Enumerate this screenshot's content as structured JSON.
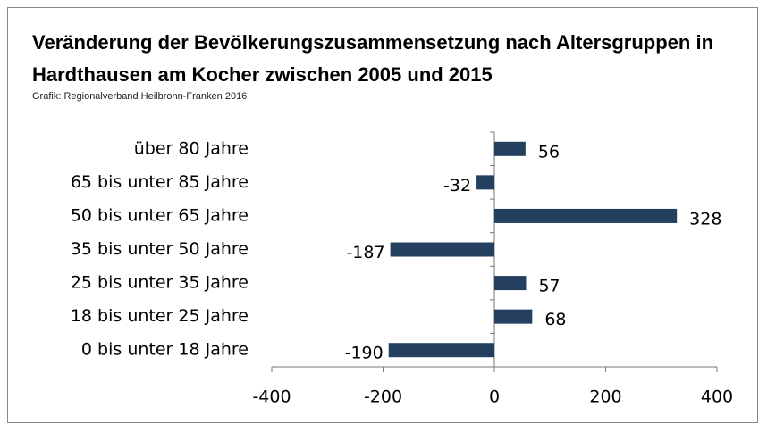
{
  "chart_data": {
    "type": "bar",
    "orientation": "horizontal",
    "title": "Veränderung der Bevölkerungszusammensetzung nach Altersgruppen in Hardthausen am Kocher zwischen 2005 und 2015",
    "subtitle": "Grafik: Regionalverband Heilbronn-Franken 2016",
    "categories": [
      "über 80 Jahre",
      "65 bis unter 85 Jahre",
      "50 bis unter 65 Jahre",
      "35 bis unter 50 Jahre",
      "25 bis unter 35 Jahre",
      "18 bis unter 25 Jahre",
      "0 bis unter 18 Jahre"
    ],
    "values": [
      56,
      -32,
      328,
      -187,
      57,
      68,
      -190
    ],
    "color": "#243f60",
    "xlim": [
      -400,
      400
    ],
    "xticks": [
      -400,
      -200,
      0,
      200,
      400
    ],
    "grid": false
  }
}
